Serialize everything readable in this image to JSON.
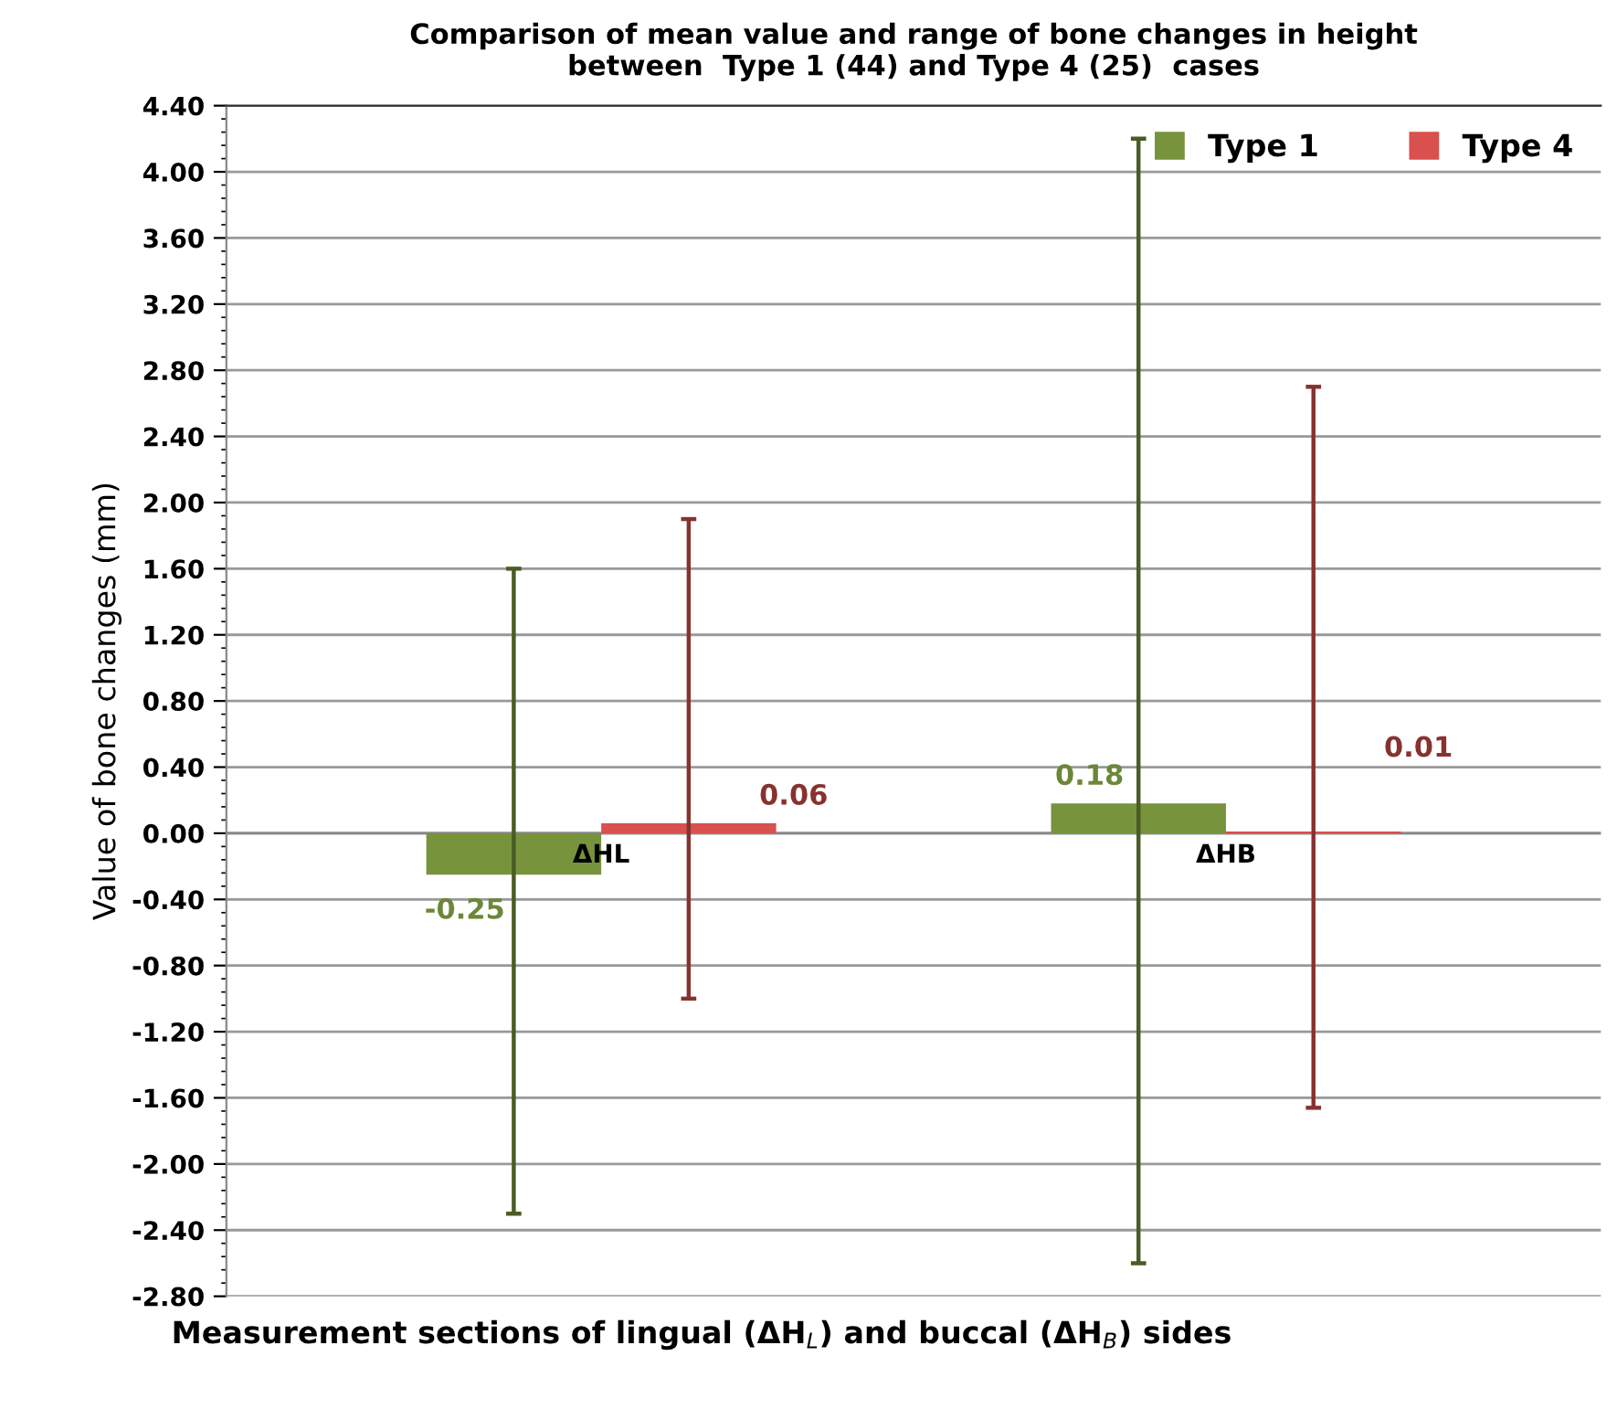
{
  "chart_data": {
    "type": "bar",
    "title": "Comparison of mean value and range of bone changes in height\nbetween  Type 1 (44) and Type 4 (25)  cases",
    "xlabel": "Measurement sections of lingual (ΔH$_{L}$) and buccal (ΔH$_{B}$) sides",
    "ylabel": "Value of bone changes (mm)",
    "categories": [
      "ΔHL",
      "ΔHB"
    ],
    "series": [
      {
        "name": "Type 1",
        "color": "#77933c",
        "values": [
          -0.25,
          0.18
        ],
        "errors": [
          [
            -2.3,
            1.6
          ],
          [
            -2.6,
            4.2
          ]
        ]
      },
      {
        "name": "Type 4",
        "color": "#d9504e",
        "values": [
          0.06,
          0.01
        ],
        "errors": [
          [
            -1.0,
            1.9
          ],
          [
            -1.66,
            2.7
          ]
        ]
      }
    ],
    "data_labels": true,
    "ylim": [
      -2.8,
      4.4
    ],
    "yticks": [
      {
        "value": -2.8,
        "label": "-2.80"
      },
      {
        "value": -2.4,
        "label": "-2.40"
      },
      {
        "value": -2.0,
        "label": "-2.00"
      },
      {
        "value": -1.6,
        "label": "-1.60"
      },
      {
        "value": -1.2,
        "label": "-1.20"
      },
      {
        "value": -0.8,
        "label": "-0.80"
      },
      {
        "value": -0.4,
        "label": "-0.40"
      },
      {
        "value": 0,
        "label": "0.00"
      },
      {
        "value": 0.4,
        "label": "0.40"
      },
      {
        "value": 0.8,
        "label": "0.80"
      },
      {
        "value": 1.2,
        "label": "1.20"
      },
      {
        "value": 1.6,
        "label": "1.60"
      },
      {
        "value": 2.0,
        "label": "2.00"
      },
      {
        "value": 2.4,
        "label": "2.40"
      },
      {
        "value": 2.8,
        "label": "2.80"
      },
      {
        "value": 3.2,
        "label": "3.20"
      },
      {
        "value": 3.6,
        "label": "3.60"
      },
      {
        "value": 4.0,
        "label": "4.00"
      },
      {
        "value": 4.4,
        "label": "4.40"
      }
    ],
    "grid": "y",
    "legend": "top right"
  }
}
